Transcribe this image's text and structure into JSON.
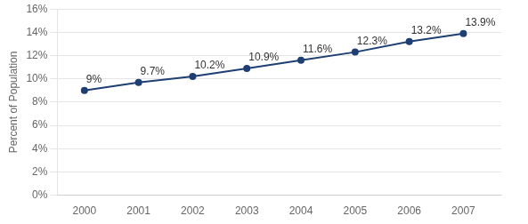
{
  "chart_data": {
    "type": "line",
    "x": [
      2000,
      2001,
      2002,
      2003,
      2004,
      2005,
      2006,
      2007
    ],
    "values": [
      9.0,
      9.7,
      10.2,
      10.9,
      11.6,
      12.3,
      13.2,
      13.9
    ],
    "value_labels": [
      "9%",
      "9.7%",
      "10.2%",
      "10.9%",
      "11.6%",
      "12.3%",
      "13.2%",
      "13.9%"
    ],
    "data_labels": true,
    "color": "#1E3F73",
    "marker": "circle",
    "ylabel": "Percent of Population",
    "xlim": [
      1999.5,
      2007.7
    ],
    "xticks": [
      2000,
      2001,
      2002,
      2003,
      2004,
      2005,
      2006,
      2007
    ],
    "ylim": [
      0,
      16
    ],
    "yticks": [
      {
        "value": 0,
        "label": "0%"
      },
      {
        "value": 2,
        "label": "2%"
      },
      {
        "value": 4,
        "label": "4%"
      },
      {
        "value": 6,
        "label": "6%"
      },
      {
        "value": 8,
        "label": "8%"
      },
      {
        "value": 10,
        "label": "10%"
      },
      {
        "value": 12,
        "label": "12%"
      },
      {
        "value": 14,
        "label": "14%"
      },
      {
        "value": 16,
        "label": "16%"
      }
    ],
    "grid": "y"
  }
}
